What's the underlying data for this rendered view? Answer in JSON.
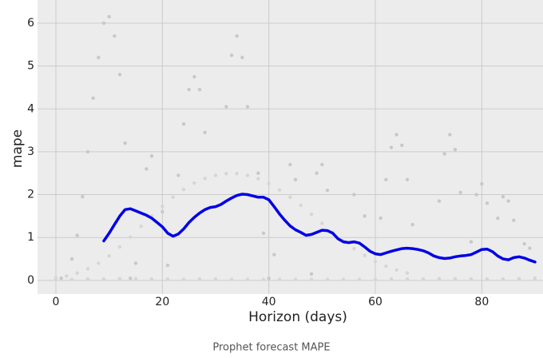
{
  "chart_data": {
    "type": "line",
    "caption": "Prophet forecast MAPE",
    "x_label": "Horizon (days)",
    "y_label": "mape",
    "xlim": [
      -3.45,
      91.5
    ],
    "ylim": [
      -0.32,
      6.54
    ],
    "xticks": [
      0,
      20,
      40,
      60,
      80
    ],
    "yticks": [
      0,
      1,
      2,
      3,
      4,
      5,
      6
    ],
    "grid": true,
    "series": [
      {
        "style": "points",
        "color": "#c8c8c8",
        "x": [
          1,
          3,
          4,
          5,
          6,
          7,
          8,
          9,
          10,
          11,
          12,
          13,
          14,
          15,
          17,
          18,
          20,
          21,
          23,
          24,
          25,
          26,
          27,
          28,
          32,
          33,
          34,
          35,
          36,
          38,
          39,
          40,
          41,
          44,
          45,
          48,
          49,
          50,
          51,
          56,
          58,
          61,
          62,
          63,
          64,
          65,
          66,
          67,
          72,
          73,
          74,
          75,
          76,
          78,
          79,
          80,
          81,
          83,
          84,
          85,
          86,
          88,
          89
        ],
        "values": [
          0.05,
          0.5,
          1.05,
          1.95,
          3.0,
          4.25,
          5.2,
          6.0,
          6.15,
          5.7,
          4.8,
          3.2,
          0.05,
          0.4,
          2.6,
          2.9,
          1.6,
          0.35,
          2.45,
          3.65,
          4.45,
          4.75,
          4.45,
          3.45,
          4.05,
          5.25,
          5.7,
          5.2,
          4.05,
          2.5,
          1.1,
          0.05,
          0.6,
          2.7,
          2.35,
          0.15,
          2.5,
          2.7,
          2.1,
          2.0,
          1.5,
          1.45,
          2.35,
          3.1,
          3.4,
          3.15,
          2.35,
          1.3,
          1.85,
          2.95,
          3.4,
          3.05,
          2.05,
          0.9,
          2.0,
          2.25,
          1.8,
          1.45,
          1.95,
          1.85,
          1.4,
          0.85,
          0.75
        ]
      },
      {
        "style": "points",
        "color": "#d6d6d6",
        "x": [
          0,
          2,
          4,
          6,
          8,
          10,
          12,
          14,
          16,
          18,
          20,
          22,
          24,
          26,
          28,
          30,
          32,
          34,
          36,
          38,
          40,
          42,
          44,
          46,
          48,
          50,
          52,
          54,
          56,
          58,
          60,
          62,
          64,
          66
        ],
        "values": [
          0.06,
          0.1,
          0.17,
          0.27,
          0.4,
          0.57,
          0.78,
          1.01,
          1.26,
          1.5,
          1.73,
          1.94,
          2.12,
          2.27,
          2.38,
          2.45,
          2.49,
          2.49,
          2.45,
          2.37,
          2.26,
          2.11,
          1.94,
          1.75,
          1.54,
          1.33,
          1.12,
          0.92,
          0.74,
          0.58,
          0.44,
          0.33,
          0.24,
          0.17
        ]
      },
      {
        "style": "points",
        "color": "#d6d6d6",
        "x": [
          0,
          3,
          6,
          9,
          12,
          15,
          18,
          21,
          24,
          27,
          30,
          33,
          36,
          39,
          42,
          45,
          48,
          51,
          54,
          57,
          60,
          63,
          66,
          69,
          72,
          75,
          78,
          81,
          84,
          87,
          90
        ],
        "values": [
          0.02,
          0.02,
          0.03,
          0.03,
          0.04,
          0.04,
          0.03,
          0.03,
          0.02,
          0.03,
          0.03,
          0.02,
          0.02,
          0.02,
          0.02,
          0.02,
          0.02,
          0.02,
          0.02,
          0.02,
          0.02,
          0.03,
          0.03,
          0.03,
          0.04,
          0.04,
          0.03,
          0.03,
          0.03,
          0.04,
          0.05
        ]
      },
      {
        "style": "line",
        "color": "#0000e6",
        "x": [
          9,
          10,
          11,
          12,
          13,
          14,
          15,
          16,
          17,
          18,
          19,
          20,
          21,
          22,
          23,
          24,
          25,
          26,
          27,
          28,
          29,
          30,
          31,
          32,
          33,
          34,
          35,
          36,
          37,
          38,
          39,
          40,
          41,
          42,
          43,
          44,
          45,
          46,
          47,
          48,
          49,
          50,
          51,
          52,
          53,
          54,
          55,
          56,
          57,
          58,
          59,
          60,
          61,
          62,
          63,
          64,
          65,
          66,
          67,
          68,
          69,
          70,
          71,
          72,
          73,
          74,
          75,
          76,
          77,
          78,
          79,
          80,
          81,
          82,
          83,
          84,
          85,
          86,
          87,
          88,
          89,
          90
        ],
        "values": [
          0.92,
          1.1,
          1.3,
          1.5,
          1.65,
          1.67,
          1.62,
          1.57,
          1.52,
          1.45,
          1.35,
          1.25,
          1.1,
          1.03,
          1.08,
          1.2,
          1.35,
          1.47,
          1.57,
          1.65,
          1.7,
          1.72,
          1.77,
          1.85,
          1.92,
          1.98,
          2.01,
          2.0,
          1.97,
          1.94,
          1.94,
          1.88,
          1.72,
          1.55,
          1.4,
          1.27,
          1.18,
          1.12,
          1.05,
          1.07,
          1.12,
          1.17,
          1.16,
          1.1,
          0.97,
          0.9,
          0.88,
          0.9,
          0.87,
          0.78,
          0.68,
          0.62,
          0.6,
          0.64,
          0.68,
          0.71,
          0.74,
          0.75,
          0.74,
          0.72,
          0.69,
          0.64,
          0.57,
          0.53,
          0.51,
          0.52,
          0.55,
          0.57,
          0.58,
          0.6,
          0.66,
          0.72,
          0.73,
          0.67,
          0.57,
          0.5,
          0.48,
          0.53,
          0.55,
          0.52,
          0.47,
          0.43
        ]
      }
    ]
  }
}
